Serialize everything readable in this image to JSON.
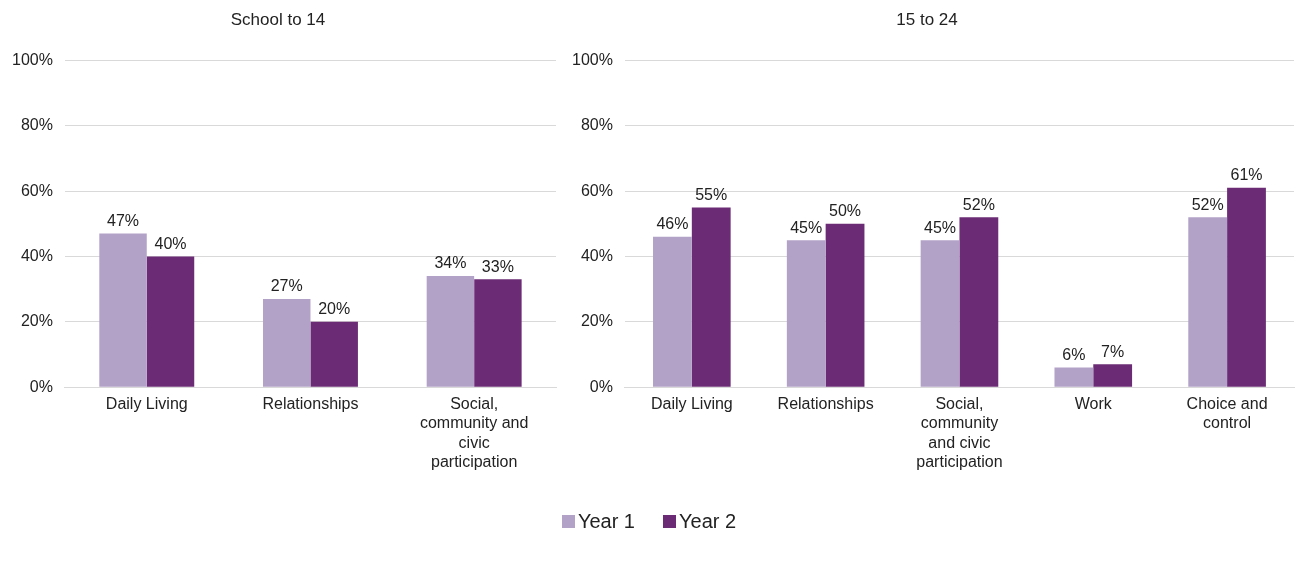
{
  "chart_data": [
    {
      "type": "bar",
      "title": "School to 14",
      "categories": [
        "Daily Living",
        "Relationships",
        "Social, community and civic participation"
      ],
      "series": [
        {
          "name": "Year 1",
          "color": "#b3a2c7",
          "values": [
            47,
            27,
            34
          ],
          "value_labels": [
            "47%",
            "27%",
            "34%"
          ]
        },
        {
          "name": "Year 2",
          "color": "#6b2c75",
          "values": [
            40,
            20,
            33
          ],
          "value_labels": [
            "40%",
            "20%",
            "33%"
          ]
        }
      ],
      "ylim": [
        0,
        100
      ],
      "yticks": [
        {
          "value": 0,
          "label": "0%"
        },
        {
          "value": 20,
          "label": "20%"
        },
        {
          "value": 40,
          "label": "40%"
        },
        {
          "value": 60,
          "label": "60%"
        },
        {
          "value": 80,
          "label": "80%"
        },
        {
          "value": 100,
          "label": "100%"
        }
      ],
      "grid": "y",
      "legend": "bottom"
    },
    {
      "type": "bar",
      "title": "15 to 24",
      "categories": [
        "Daily Living",
        "Relationships",
        "Social, community and civic participation",
        "Work",
        "Choice and control"
      ],
      "series": [
        {
          "color": "#b3a2c7",
          "values": [
            46,
            45,
            45,
            6,
            52
          ],
          "value_labels": [
            "46%",
            "45%",
            "45%",
            "6%",
            "52%"
          ]
        },
        {
          "color": "#6b2c75",
          "values": [
            55,
            50,
            52,
            7,
            61
          ],
          "value_labels": [
            "55%",
            "50%",
            "52%",
            "7%",
            "61%"
          ]
        }
      ],
      "ylim": [
        0,
        100
      ],
      "yticks": [
        {
          "value": 0,
          "label": "0%"
        },
        {
          "value": 20,
          "label": "20%"
        },
        {
          "value": 40,
          "label": "40%"
        },
        {
          "value": 60,
          "label": "60%"
        },
        {
          "value": 80,
          "label": "80%"
        },
        {
          "value": 100,
          "label": "100%"
        }
      ],
      "grid": "y"
    }
  ]
}
